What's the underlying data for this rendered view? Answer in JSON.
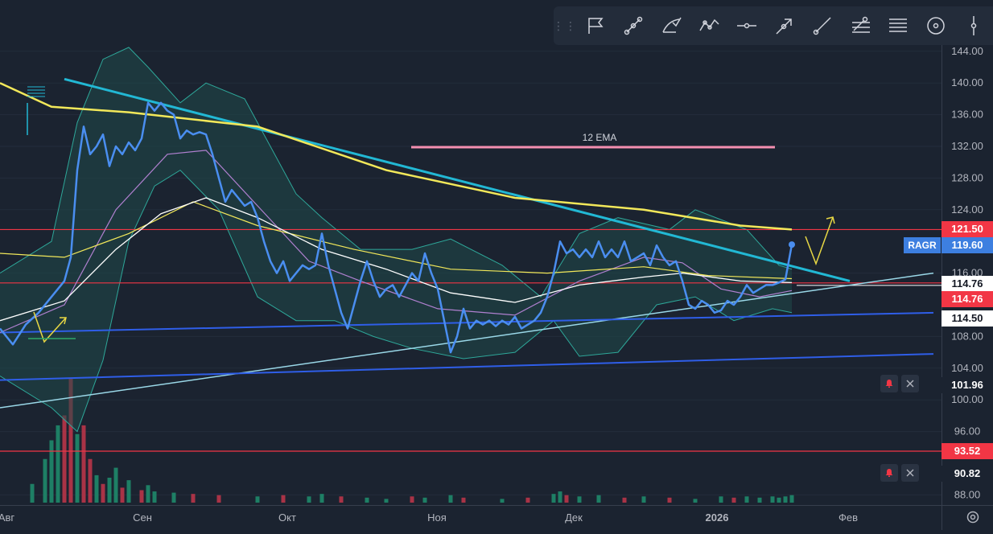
{
  "toolbar": {
    "tools": [
      {
        "name": "flag-marker-tool-icon"
      },
      {
        "name": "trend-line-tool-icon"
      },
      {
        "name": "pitchfork-tool-icon"
      },
      {
        "name": "path-tool-icon"
      },
      {
        "name": "horizontal-line-tool-icon"
      },
      {
        "name": "arrow-tool-icon"
      },
      {
        "name": "ray-tool-icon"
      },
      {
        "name": "fib-retracement-tool-icon"
      },
      {
        "name": "parallel-lines-tool-icon"
      },
      {
        "name": "circle-tool-icon"
      },
      {
        "name": "vertical-line-tool-icon"
      }
    ]
  },
  "chart_data": {
    "type": "line",
    "title": "",
    "symbol": "RAGR",
    "annotation_text": "12 EMA",
    "x_labels": [
      "Авг",
      "Сен",
      "Окт",
      "Ноя",
      "Дек",
      "2026",
      "Фев"
    ],
    "y_ticks": [
      "144.00",
      "140.00",
      "136.00",
      "132.00",
      "128.00",
      "124.00",
      "116.00",
      "108.00",
      "104.00",
      "100.00",
      "96.00",
      "88.00"
    ],
    "price_labels": [
      {
        "value": "121.50",
        "style": "red"
      },
      {
        "value": "119.60",
        "style": "blue"
      },
      {
        "value": "114.76",
        "style": "white"
      },
      {
        "value": "114.76",
        "style": "red"
      },
      {
        "value": "114.50",
        "style": "white"
      },
      {
        "value": "101.96",
        "style": "dark"
      },
      {
        "value": "93.52",
        "style": "red"
      },
      {
        "value": "90.82",
        "style": "dark"
      }
    ],
    "ylim": [
      86,
      146
    ],
    "horizontal_levels": [
      121.5,
      114.76,
      93.52
    ],
    "price_series": [
      {
        "x": 0,
        "y": 109
      },
      {
        "x": 2,
        "y": 107
      },
      {
        "x": 4,
        "y": 109.5
      },
      {
        "x": 6,
        "y": 111
      },
      {
        "x": 8,
        "y": 113
      },
      {
        "x": 10,
        "y": 115
      },
      {
        "x": 11,
        "y": 118
      },
      {
        "x": 12,
        "y": 129
      },
      {
        "x": 13,
        "y": 134.5
      },
      {
        "x": 14,
        "y": 131
      },
      {
        "x": 15,
        "y": 132
      },
      {
        "x": 16,
        "y": 133.5
      },
      {
        "x": 17,
        "y": 129.5
      },
      {
        "x": 18,
        "y": 132
      },
      {
        "x": 19,
        "y": 131
      },
      {
        "x": 20,
        "y": 132.5
      },
      {
        "x": 21,
        "y": 131.5
      },
      {
        "x": 22,
        "y": 133
      },
      {
        "x": 23,
        "y": 137.5
      },
      {
        "x": 24,
        "y": 136.5
      },
      {
        "x": 25,
        "y": 137.5
      },
      {
        "x": 26,
        "y": 136.5
      },
      {
        "x": 27,
        "y": 136
      },
      {
        "x": 28,
        "y": 133
      },
      {
        "x": 29,
        "y": 134
      },
      {
        "x": 30,
        "y": 133.5
      },
      {
        "x": 31,
        "y": 133.8
      },
      {
        "x": 32,
        "y": 133.5
      },
      {
        "x": 33,
        "y": 131
      },
      {
        "x": 34,
        "y": 128
      },
      {
        "x": 35,
        "y": 125
      },
      {
        "x": 36,
        "y": 126.5
      },
      {
        "x": 37,
        "y": 125.5
      },
      {
        "x": 38,
        "y": 124.5
      },
      {
        "x": 39,
        "y": 125
      },
      {
        "x": 40,
        "y": 123
      },
      {
        "x": 41,
        "y": 120
      },
      {
        "x": 42,
        "y": 117.5
      },
      {
        "x": 43,
        "y": 116
      },
      {
        "x": 44,
        "y": 117.5
      },
      {
        "x": 45,
        "y": 115
      },
      {
        "x": 46,
        "y": 116
      },
      {
        "x": 47,
        "y": 117
      },
      {
        "x": 48,
        "y": 116.5
      },
      {
        "x": 49,
        "y": 117
      },
      {
        "x": 50,
        "y": 121
      },
      {
        "x": 51,
        "y": 117
      },
      {
        "x": 52,
        "y": 114
      },
      {
        "x": 53,
        "y": 111
      },
      {
        "x": 54,
        "y": 109
      },
      {
        "x": 55,
        "y": 112
      },
      {
        "x": 56,
        "y": 115
      },
      {
        "x": 57,
        "y": 117.5
      },
      {
        "x": 58,
        "y": 115
      },
      {
        "x": 59,
        "y": 113
      },
      {
        "x": 60,
        "y": 114
      },
      {
        "x": 61,
        "y": 114.5
      },
      {
        "x": 62,
        "y": 113
      },
      {
        "x": 63,
        "y": 114.5
      },
      {
        "x": 64,
        "y": 116
      },
      {
        "x": 65,
        "y": 115
      },
      {
        "x": 66,
        "y": 118.5
      },
      {
        "x": 67,
        "y": 116
      },
      {
        "x": 68,
        "y": 114
      },
      {
        "x": 69,
        "y": 110
      },
      {
        "x": 70,
        "y": 106
      },
      {
        "x": 71,
        "y": 108
      },
      {
        "x": 72,
        "y": 111.5
      },
      {
        "x": 73,
        "y": 109
      },
      {
        "x": 74,
        "y": 110
      },
      {
        "x": 75,
        "y": 109.5
      },
      {
        "x": 76,
        "y": 110
      },
      {
        "x": 77,
        "y": 109.3
      },
      {
        "x": 78,
        "y": 110
      },
      {
        "x": 79,
        "y": 109.5
      },
      {
        "x": 80,
        "y": 110.5
      },
      {
        "x": 81,
        "y": 109
      },
      {
        "x": 82,
        "y": 109.5
      },
      {
        "x": 83,
        "y": 110
      },
      {
        "x": 84,
        "y": 111
      },
      {
        "x": 85,
        "y": 113
      },
      {
        "x": 86,
        "y": 116
      },
      {
        "x": 87,
        "y": 120
      },
      {
        "x": 88,
        "y": 118.5
      },
      {
        "x": 89,
        "y": 119
      },
      {
        "x": 90,
        "y": 118
      },
      {
        "x": 91,
        "y": 119
      },
      {
        "x": 92,
        "y": 118
      },
      {
        "x": 93,
        "y": 120
      },
      {
        "x": 94,
        "y": 118
      },
      {
        "x": 95,
        "y": 119
      },
      {
        "x": 96,
        "y": 118
      },
      {
        "x": 97,
        "y": 120
      },
      {
        "x": 98,
        "y": 117.5
      },
      {
        "x": 99,
        "y": 118
      },
      {
        "x": 100,
        "y": 118.5
      },
      {
        "x": 101,
        "y": 117
      },
      {
        "x": 102,
        "y": 119.5
      },
      {
        "x": 103,
        "y": 118
      },
      {
        "x": 104,
        "y": 117
      },
      {
        "x": 105,
        "y": 117.5
      },
      {
        "x": 106,
        "y": 115
      },
      {
        "x": 107,
        "y": 112
      },
      {
        "x": 108,
        "y": 111.5
      },
      {
        "x": 109,
        "y": 112.5
      },
      {
        "x": 110,
        "y": 112
      },
      {
        "x": 111,
        "y": 111
      },
      {
        "x": 112,
        "y": 111.3
      },
      {
        "x": 113,
        "y": 112.5
      },
      {
        "x": 114,
        "y": 112
      },
      {
        "x": 115,
        "y": 113
      },
      {
        "x": 116,
        "y": 114.5
      },
      {
        "x": 117,
        "y": 113.5
      },
      {
        "x": 118,
        "y": 114
      },
      {
        "x": 119,
        "y": 114.5
      },
      {
        "x": 120,
        "y": 114.5
      },
      {
        "x": 121,
        "y": 114.8
      },
      {
        "x": 122,
        "y": 115.2
      },
      {
        "x": 123,
        "y": 119.6
      }
    ],
    "sma_yellow_long": [
      {
        "x": 0,
        "y": 140
      },
      {
        "x": 8,
        "y": 137
      },
      {
        "x": 20,
        "y": 136.3
      },
      {
        "x": 40,
        "y": 134.5
      },
      {
        "x": 60,
        "y": 129
      },
      {
        "x": 80,
        "y": 125.5
      },
      {
        "x": 100,
        "y": 124
      },
      {
        "x": 115,
        "y": 122
      },
      {
        "x": 123,
        "y": 121.5
      }
    ],
    "ma_white": [
      {
        "x": 0,
        "y": 110
      },
      {
        "x": 10,
        "y": 112.5
      },
      {
        "x": 18,
        "y": 119
      },
      {
        "x": 25,
        "y": 123.5
      },
      {
        "x": 32,
        "y": 125.5
      },
      {
        "x": 40,
        "y": 123
      },
      {
        "x": 50,
        "y": 119
      },
      {
        "x": 60,
        "y": 116.5
      },
      {
        "x": 70,
        "y": 113.5
      },
      {
        "x": 80,
        "y": 112.3
      },
      {
        "x": 90,
        "y": 114.5
      },
      {
        "x": 100,
        "y": 115.5
      },
      {
        "x": 106,
        "y": 116
      },
      {
        "x": 115,
        "y": 115
      },
      {
        "x": 123,
        "y": 114.8
      }
    ],
    "ma_yellow_mid": [
      {
        "x": 0,
        "y": 118.5
      },
      {
        "x": 10,
        "y": 118
      },
      {
        "x": 20,
        "y": 121
      },
      {
        "x": 30,
        "y": 125
      },
      {
        "x": 40,
        "y": 122
      },
      {
        "x": 55,
        "y": 119
      },
      {
        "x": 70,
        "y": 116.5
      },
      {
        "x": 85,
        "y": 116
      },
      {
        "x": 100,
        "y": 116.8
      },
      {
        "x": 110,
        "y": 115.7
      },
      {
        "x": 123,
        "y": 115.3
      }
    ],
    "ma_purple": [
      {
        "x": 0,
        "y": 108.5
      },
      {
        "x": 10,
        "y": 112
      },
      {
        "x": 18,
        "y": 124
      },
      {
        "x": 26,
        "y": 131
      },
      {
        "x": 32,
        "y": 131.5
      },
      {
        "x": 40,
        "y": 124.5
      },
      {
        "x": 48,
        "y": 117.5
      },
      {
        "x": 56,
        "y": 115
      },
      {
        "x": 68,
        "y": 111.5
      },
      {
        "x": 80,
        "y": 110.7
      },
      {
        "x": 90,
        "y": 115
      },
      {
        "x": 100,
        "y": 118
      },
      {
        "x": 106,
        "y": 117.3
      },
      {
        "x": 112,
        "y": 114
      },
      {
        "x": 118,
        "y": 113
      },
      {
        "x": 123,
        "y": 113.8
      }
    ],
    "bollinger_upper": [
      {
        "x": 0,
        "y": 116
      },
      {
        "x": 8,
        "y": 120
      },
      {
        "x": 12,
        "y": 135
      },
      {
        "x": 16,
        "y": 143
      },
      {
        "x": 20,
        "y": 144.5
      },
      {
        "x": 23,
        "y": 142
      },
      {
        "x": 28,
        "y": 137.5
      },
      {
        "x": 32,
        "y": 140
      },
      {
        "x": 38,
        "y": 138
      },
      {
        "x": 42,
        "y": 132
      },
      {
        "x": 46,
        "y": 126
      },
      {
        "x": 50,
        "y": 123
      },
      {
        "x": 56,
        "y": 119
      },
      {
        "x": 64,
        "y": 119
      },
      {
        "x": 70,
        "y": 120.3
      },
      {
        "x": 78,
        "y": 117
      },
      {
        "x": 84,
        "y": 113
      },
      {
        "x": 90,
        "y": 121
      },
      {
        "x": 96,
        "y": 123
      },
      {
        "x": 104,
        "y": 121.5
      },
      {
        "x": 108,
        "y": 124
      },
      {
        "x": 116,
        "y": 121.5
      },
      {
        "x": 121,
        "y": 117
      },
      {
        "x": 123,
        "y": 116.5
      }
    ],
    "bollinger_lower": [
      {
        "x": 0,
        "y": 103
      },
      {
        "x": 8,
        "y": 99
      },
      {
        "x": 12,
        "y": 96
      },
      {
        "x": 16,
        "y": 105
      },
      {
        "x": 20,
        "y": 120
      },
      {
        "x": 24,
        "y": 127
      },
      {
        "x": 28,
        "y": 129
      },
      {
        "x": 34,
        "y": 124
      },
      {
        "x": 40,
        "y": 113
      },
      {
        "x": 46,
        "y": 110
      },
      {
        "x": 52,
        "y": 110
      },
      {
        "x": 58,
        "y": 108
      },
      {
        "x": 64,
        "y": 106.5
      },
      {
        "x": 72,
        "y": 105.2
      },
      {
        "x": 80,
        "y": 106
      },
      {
        "x": 86,
        "y": 110
      },
      {
        "x": 90,
        "y": 105.5
      },
      {
        "x": 96,
        "y": 106
      },
      {
        "x": 102,
        "y": 112
      },
      {
        "x": 108,
        "y": 113
      },
      {
        "x": 114,
        "y": 110
      },
      {
        "x": 120,
        "y": 111.5
      },
      {
        "x": 123,
        "y": 111
      }
    ],
    "trendlines": [
      {
        "name": "descending-resistance",
        "from": {
          "x": 10,
          "y": 140.5
        },
        "to": {
          "x": 132,
          "y": 115
        }
      },
      {
        "name": "ascending-support",
        "from": {
          "x": 0,
          "y": 99
        },
        "to": {
          "x": 145,
          "y": 116
        }
      },
      {
        "name": "upper-channel",
        "from": {
          "x": 0,
          "y": 108.5
        },
        "to": {
          "x": 145,
          "y": 111
        }
      },
      {
        "name": "lower-channel",
        "from": {
          "x": 0,
          "y": 102.5
        },
        "to": {
          "x": 145,
          "y": 105.8
        }
      }
    ],
    "volume": [
      {
        "x": 5,
        "v": 0.15,
        "c": "g"
      },
      {
        "x": 7,
        "v": 0.35,
        "c": "g"
      },
      {
        "x": 8,
        "v": 0.5,
        "c": "g"
      },
      {
        "x": 9,
        "v": 0.62,
        "c": "g"
      },
      {
        "x": 10,
        "v": 0.7,
        "c": "r"
      },
      {
        "x": 11,
        "v": 1.0,
        "c": "r"
      },
      {
        "x": 12,
        "v": 0.55,
        "c": "g"
      },
      {
        "x": 13,
        "v": 0.62,
        "c": "r"
      },
      {
        "x": 14,
        "v": 0.35,
        "c": "r"
      },
      {
        "x": 15,
        "v": 0.22,
        "c": "g"
      },
      {
        "x": 16,
        "v": 0.15,
        "c": "r"
      },
      {
        "x": 17,
        "v": 0.2,
        "c": "g"
      },
      {
        "x": 18,
        "v": 0.28,
        "c": "g"
      },
      {
        "x": 19,
        "v": 0.12,
        "c": "r"
      },
      {
        "x": 20,
        "v": 0.18,
        "c": "g"
      },
      {
        "x": 22,
        "v": 0.1,
        "c": "r"
      },
      {
        "x": 23,
        "v": 0.14,
        "c": "g"
      },
      {
        "x": 24,
        "v": 0.09,
        "c": "g"
      },
      {
        "x": 27,
        "v": 0.08,
        "c": "g"
      },
      {
        "x": 30,
        "v": 0.07,
        "c": "r"
      },
      {
        "x": 34,
        "v": 0.06,
        "c": "r"
      },
      {
        "x": 40,
        "v": 0.05,
        "c": "g"
      },
      {
        "x": 44,
        "v": 0.06,
        "c": "r"
      },
      {
        "x": 48,
        "v": 0.05,
        "c": "g"
      },
      {
        "x": 50,
        "v": 0.07,
        "c": "g"
      },
      {
        "x": 53,
        "v": 0.05,
        "c": "r"
      },
      {
        "x": 57,
        "v": 0.04,
        "c": "g"
      },
      {
        "x": 60,
        "v": 0.03,
        "c": "g"
      },
      {
        "x": 64,
        "v": 0.05,
        "c": "r"
      },
      {
        "x": 66,
        "v": 0.04,
        "c": "g"
      },
      {
        "x": 70,
        "v": 0.06,
        "c": "g"
      },
      {
        "x": 72,
        "v": 0.04,
        "c": "r"
      },
      {
        "x": 78,
        "v": 0.03,
        "c": "g"
      },
      {
        "x": 82,
        "v": 0.04,
        "c": "r"
      },
      {
        "x": 86,
        "v": 0.07,
        "c": "g"
      },
      {
        "x": 87,
        "v": 0.09,
        "c": "g"
      },
      {
        "x": 88,
        "v": 0.06,
        "c": "r"
      },
      {
        "x": 90,
        "v": 0.05,
        "c": "g"
      },
      {
        "x": 93,
        "v": 0.06,
        "c": "g"
      },
      {
        "x": 97,
        "v": 0.04,
        "c": "r"
      },
      {
        "x": 100,
        "v": 0.05,
        "c": "g"
      },
      {
        "x": 104,
        "v": 0.04,
        "c": "r"
      },
      {
        "x": 108,
        "v": 0.03,
        "c": "g"
      },
      {
        "x": 112,
        "v": 0.05,
        "c": "g"
      },
      {
        "x": 114,
        "v": 0.04,
        "c": "r"
      },
      {
        "x": 116,
        "v": 0.05,
        "c": "g"
      },
      {
        "x": 118,
        "v": 0.04,
        "c": "g"
      },
      {
        "x": 120,
        "v": 0.05,
        "c": "g"
      },
      {
        "x": 121,
        "v": 0.04,
        "c": "g"
      },
      {
        "x": 122,
        "v": 0.05,
        "c": "g"
      },
      {
        "x": 123,
        "v": 0.06,
        "c": "g"
      }
    ],
    "colors": {
      "background": "#1b2330",
      "price_line": "#4a8ef0",
      "descending_trend": "#22b8d4",
      "ascending_trend": "#9ad8e8",
      "channel": "#2f5ee8",
      "ma_yellow": "#f2e85a",
      "ma_white": "#ffffff",
      "ma_purple": "#b080d0",
      "bollinger_fill": "#1f4a4a",
      "bollinger_line": "#2ea89a",
      "level_red": "#f23645",
      "ema_label_line": "#f48fb1",
      "arrow_yellow": "#e8d844",
      "volume_green": "#1e8f6e",
      "volume_red": "#c2364a"
    }
  }
}
